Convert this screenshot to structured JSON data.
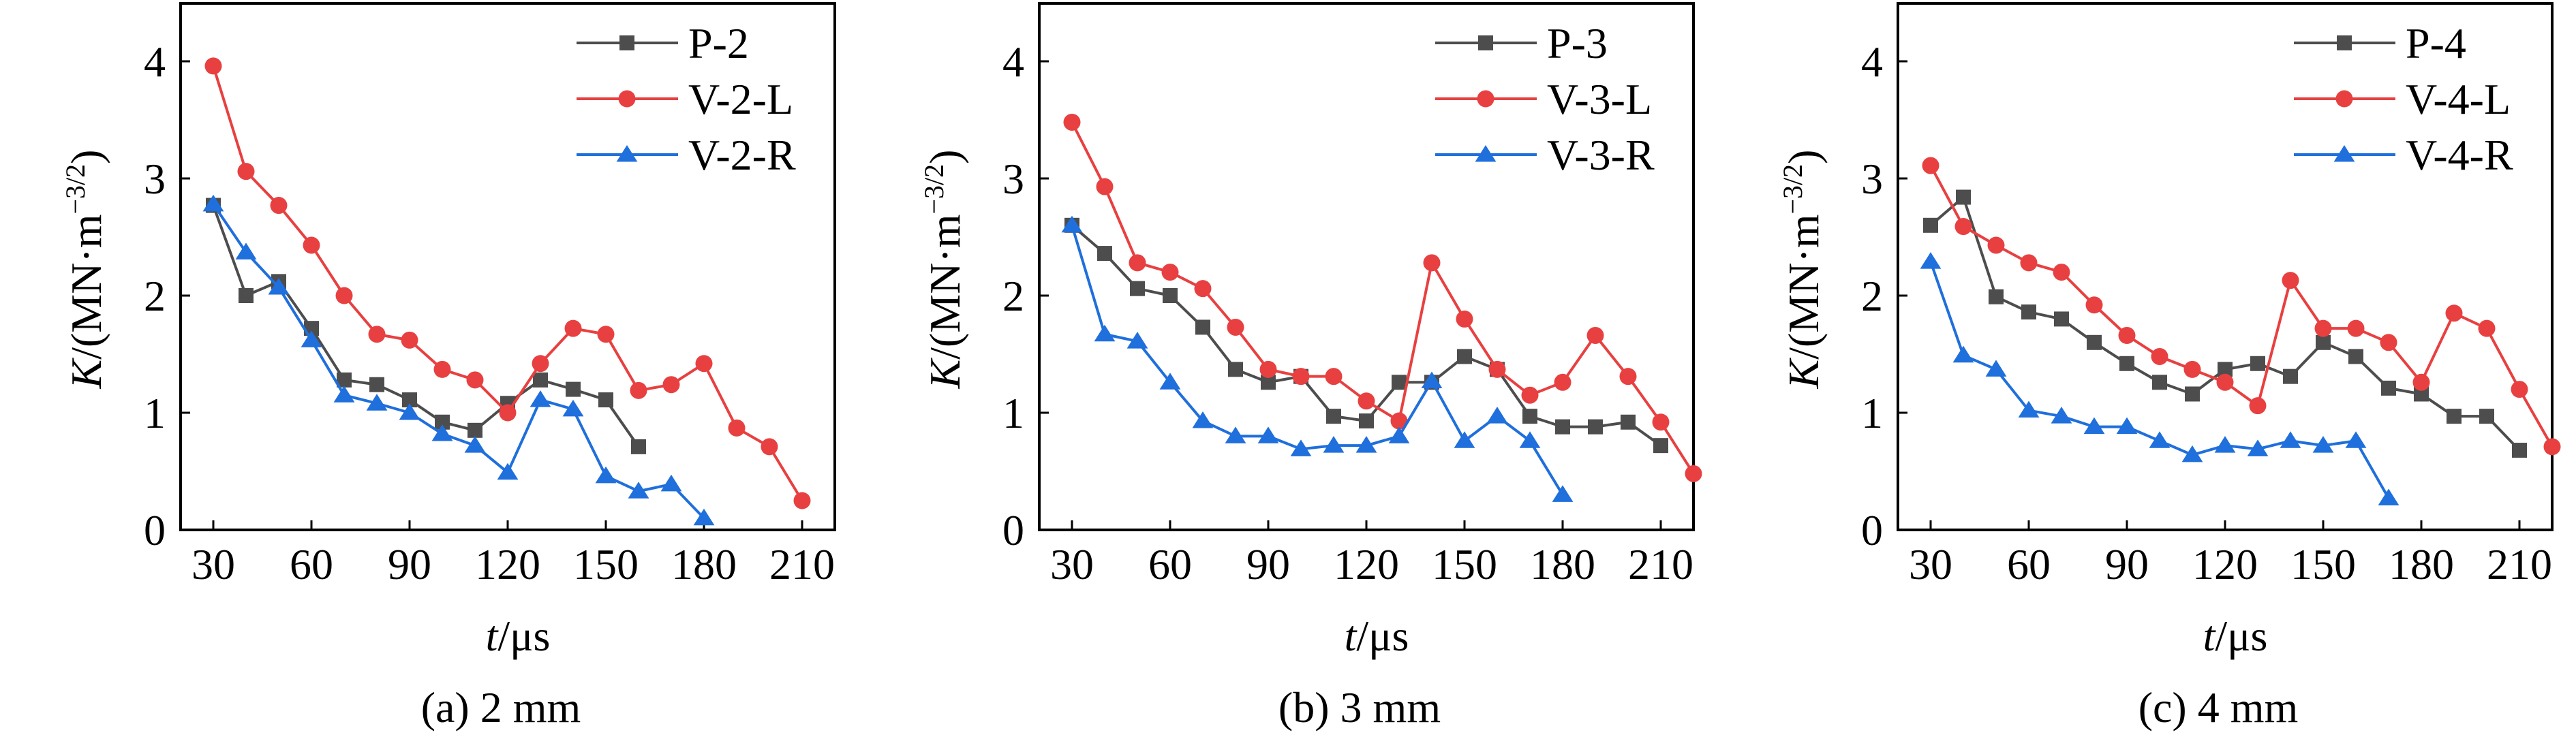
{
  "figure": {
    "colors": {
      "P": "#4d4d4d",
      "L": "#e84040",
      "R": "#1f6fdc"
    }
  },
  "chart_data": [
    {
      "type": "line",
      "caption": "(a) 2 mm",
      "xlabel": "t/μs",
      "xlabel_italic": "t",
      "xlabel_unit": "/μs",
      "ylabel_italic": "K",
      "ylabel_unit": "/(MN·m",
      "ylabel_sup": "−3/2",
      "ylabel_close": ")",
      "xlim": [
        20,
        220
      ],
      "ylim": [
        0,
        4.45
      ],
      "xticks": [
        30,
        60,
        90,
        120,
        150,
        180,
        210
      ],
      "yticks": [
        0,
        1,
        2,
        3,
        4
      ],
      "grid": false,
      "legend": "top-right",
      "series": [
        {
          "name": "P-2",
          "marker": "square",
          "color_key": "P",
          "x": [
            30,
            40,
            50,
            60,
            70,
            80,
            90,
            100,
            110,
            120,
            130,
            140,
            150,
            160
          ],
          "y": [
            2.77,
            2.0,
            2.12,
            1.72,
            1.28,
            1.24,
            1.11,
            0.92,
            0.85,
            1.08,
            1.28,
            1.2,
            1.11,
            0.71
          ]
        },
        {
          "name": "V-2-L",
          "marker": "circle",
          "color_key": "L",
          "x": [
            30,
            40,
            50,
            60,
            70,
            80,
            90,
            100,
            110,
            120,
            130,
            140,
            150,
            160,
            170,
            180,
            190,
            200,
            210
          ],
          "y": [
            3.96,
            3.06,
            2.77,
            2.43,
            2.0,
            1.67,
            1.62,
            1.37,
            1.28,
            1.0,
            1.42,
            1.72,
            1.67,
            1.19,
            1.24,
            1.42,
            0.87,
            0.71,
            0.25
          ]
        },
        {
          "name": "V-2-R",
          "marker": "triangle",
          "color_key": "R",
          "x": [
            30,
            40,
            50,
            60,
            70,
            80,
            90,
            100,
            110,
            120,
            130,
            140,
            150,
            160,
            170,
            180
          ],
          "y": [
            2.78,
            2.37,
            2.07,
            1.62,
            1.15,
            1.08,
            1.0,
            0.82,
            0.72,
            0.49,
            1.11,
            1.03,
            0.46,
            0.33,
            0.39,
            0.1
          ]
        }
      ]
    },
    {
      "type": "line",
      "caption": "(b) 3 mm",
      "xlabel": "t/μs",
      "xlabel_italic": "t",
      "xlabel_unit": "/μs",
      "ylabel_italic": "K",
      "ylabel_unit": "/(MN·m",
      "ylabel_sup": "−3/2",
      "ylabel_close": ")",
      "xlim": [
        20,
        230
      ],
      "ylim": [
        0,
        4.45
      ],
      "xticks": [
        30,
        60,
        90,
        120,
        150,
        180,
        210
      ],
      "yticks": [
        0,
        1,
        2,
        3,
        4
      ],
      "grid": false,
      "legend": "top-right",
      "series": [
        {
          "name": "P-3",
          "marker": "square",
          "color_key": "P",
          "x": [
            30,
            40,
            50,
            60,
            70,
            80,
            90,
            100,
            110,
            120,
            130,
            140,
            150,
            160,
            170,
            180,
            190,
            200,
            210
          ],
          "y": [
            2.6,
            2.36,
            2.06,
            2.0,
            1.73,
            1.37,
            1.26,
            1.31,
            0.97,
            0.93,
            1.26,
            1.26,
            1.48,
            1.37,
            0.97,
            0.88,
            0.88,
            0.92,
            0.72
          ]
        },
        {
          "name": "V-3-L",
          "marker": "circle",
          "color_key": "L",
          "x": [
            30,
            40,
            50,
            60,
            70,
            80,
            90,
            100,
            110,
            120,
            130,
            140,
            150,
            160,
            170,
            180,
            190,
            200,
            210,
            220
          ],
          "y": [
            3.48,
            2.93,
            2.28,
            2.2,
            2.06,
            1.73,
            1.37,
            1.31,
            1.31,
            1.1,
            0.93,
            2.28,
            1.8,
            1.37,
            1.15,
            1.26,
            1.66,
            1.31,
            0.92,
            0.48
          ]
        },
        {
          "name": "V-3-R",
          "marker": "triangle",
          "color_key": "R",
          "x": [
            30,
            40,
            50,
            60,
            70,
            80,
            90,
            100,
            110,
            120,
            130,
            140,
            150,
            160,
            170,
            180
          ],
          "y": [
            2.6,
            1.67,
            1.61,
            1.26,
            0.93,
            0.8,
            0.8,
            0.69,
            0.72,
            0.72,
            0.8,
            1.27,
            0.76,
            0.97,
            0.76,
            0.3
          ]
        }
      ]
    },
    {
      "type": "line",
      "caption": "(c) 4 mm",
      "xlabel": "t/μs",
      "xlabel_italic": "t",
      "xlabel_unit": "/μs",
      "ylabel_italic": "K",
      "ylabel_unit": "/(MN·m",
      "ylabel_sup": "−3/2",
      "ylabel_close": ")",
      "xlim": [
        20,
        230
      ],
      "ylim": [
        0,
        4.45
      ],
      "xticks": [
        30,
        60,
        90,
        120,
        150,
        180,
        210
      ],
      "yticks": [
        0,
        1,
        2,
        3,
        4
      ],
      "grid": false,
      "legend": "top-right",
      "series": [
        {
          "name": "P-4",
          "marker": "square",
          "color_key": "P",
          "x": [
            30,
            40,
            50,
            60,
            70,
            80,
            90,
            100,
            110,
            120,
            130,
            140,
            150,
            160,
            170,
            180,
            190,
            200,
            210
          ],
          "y": [
            2.6,
            2.84,
            1.99,
            1.86,
            1.8,
            1.6,
            1.42,
            1.26,
            1.16,
            1.37,
            1.42,
            1.31,
            1.6,
            1.48,
            1.21,
            1.16,
            0.97,
            0.97,
            0.68
          ]
        },
        {
          "name": "V-4-L",
          "marker": "circle",
          "color_key": "L",
          "x": [
            30,
            40,
            50,
            60,
            70,
            80,
            90,
            100,
            110,
            120,
            130,
            140,
            150,
            160,
            170,
            180,
            190,
            200,
            210,
            220
          ],
          "y": [
            3.11,
            2.59,
            2.43,
            2.28,
            2.2,
            1.92,
            1.66,
            1.48,
            1.37,
            1.26,
            1.06,
            2.13,
            1.72,
            1.72,
            1.6,
            1.26,
            1.85,
            1.72,
            1.2,
            0.71
          ]
        },
        {
          "name": "V-4-R",
          "marker": "triangle",
          "color_key": "R",
          "x": [
            30,
            40,
            50,
            60,
            70,
            80,
            90,
            100,
            110,
            120,
            130,
            140,
            150,
            160,
            170
          ],
          "y": [
            2.29,
            1.49,
            1.37,
            1.02,
            0.97,
            0.88,
            0.88,
            0.76,
            0.64,
            0.72,
            0.69,
            0.76,
            0.72,
            0.76,
            0.27
          ]
        }
      ]
    }
  ]
}
